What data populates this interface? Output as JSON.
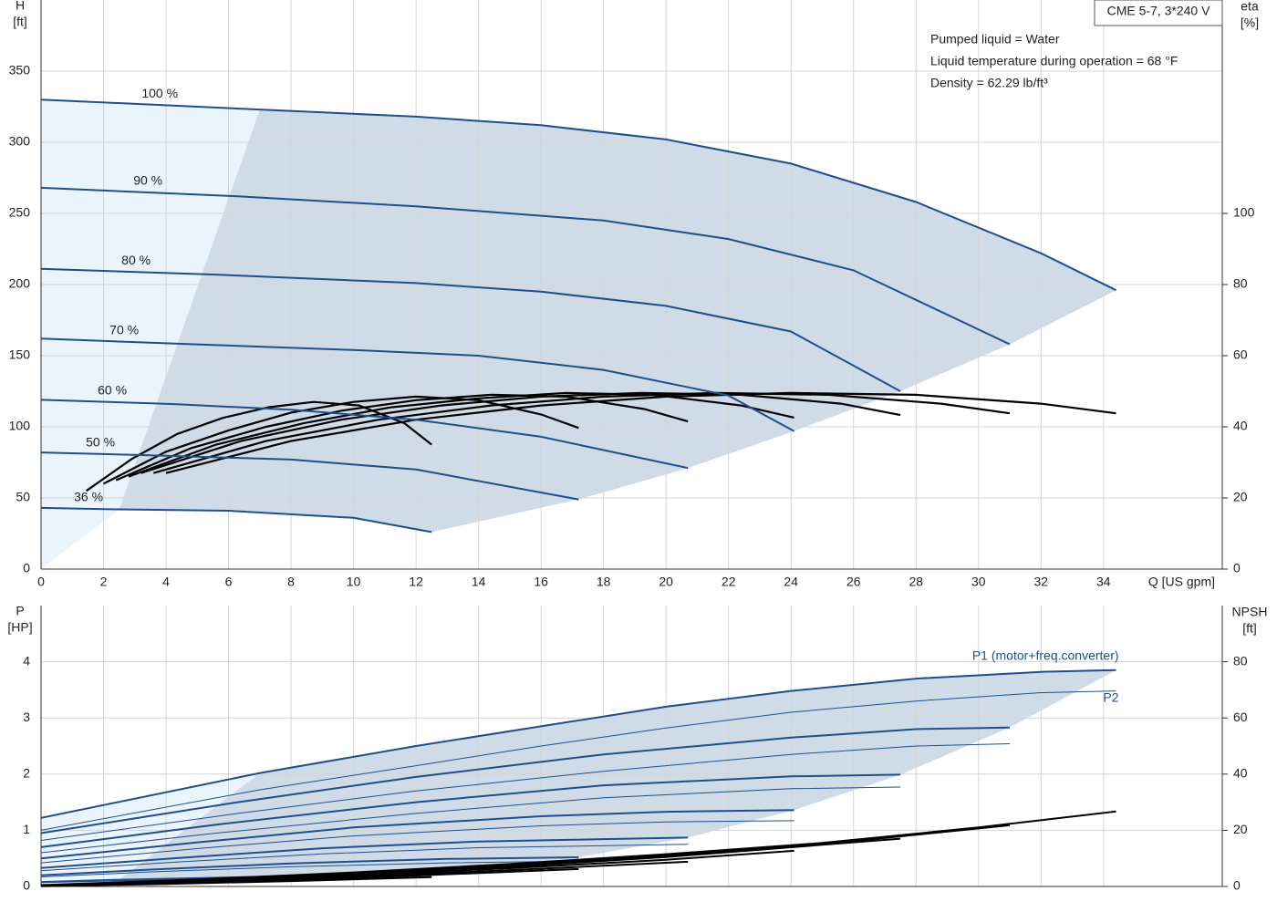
{
  "chart_data": [
    {
      "type": "line",
      "y_label": "H",
      "y_unit": "[ft]",
      "y2_label": "eta",
      "y2_unit": "[%]",
      "x_label": "Q [US gpm]",
      "box_title": "CME 5-7, 3*240 V",
      "notes": [
        "Pumped liquid = Water",
        "Liquid temperature during operation = 68 °F",
        "Density = 62.29 lb/ft³"
      ],
      "xlim": [
        0,
        37.8
      ],
      "xticks": [
        0,
        2,
        4,
        6,
        8,
        10,
        12,
        14,
        16,
        18,
        20,
        22,
        24,
        26,
        28,
        30,
        32,
        34
      ],
      "ylim": [
        0,
        400
      ],
      "yticks": [
        0,
        50,
        100,
        150,
        200,
        250,
        300,
        350
      ],
      "y2lim": [
        0,
        160
      ],
      "y2ticks": [
        0,
        20,
        40,
        60,
        80,
        100
      ],
      "grid": true,
      "shade_color": "#cfdce8",
      "light_shade_color": "#eaf4fc",
      "series": [
        {
          "name": "100 %",
          "color": "#1f4e8c",
          "x": [
            0,
            7,
            12,
            16,
            20,
            24,
            28,
            32,
            34.4
          ],
          "values": [
            330,
            323,
            318,
            312,
            302,
            285,
            258,
            222,
            196
          ]
        },
        {
          "name": "90 %",
          "color": "#1f4e8c",
          "x": [
            0,
            6.3,
            12,
            18,
            22,
            26,
            31
          ],
          "values": [
            268,
            262,
            255,
            245,
            232,
            210,
            158
          ]
        },
        {
          "name": "80 %",
          "color": "#1f4e8c",
          "x": [
            0,
            5.6,
            12,
            16,
            20,
            24,
            27.5
          ],
          "values": [
            211,
            207,
            201,
            195,
            185,
            167,
            125
          ]
        },
        {
          "name": "70 %",
          "color": "#1f4e8c",
          "x": [
            0,
            4.9,
            10,
            14,
            18,
            22,
            24.1
          ],
          "values": [
            162,
            158,
            154,
            150,
            140,
            122,
            97
          ]
        },
        {
          "name": "60 %",
          "color": "#1f4e8c",
          "x": [
            0,
            4.2,
            8,
            12,
            16,
            20.7
          ],
          "values": [
            119,
            116,
            112,
            105,
            93,
            71
          ]
        },
        {
          "name": "50 %",
          "color": "#1f4e8c",
          "x": [
            0,
            3.5,
            8,
            12,
            17.2
          ],
          "values": [
            82,
            80,
            77,
            70,
            49
          ]
        },
        {
          "name": "36 %",
          "color": "#1f4e8c",
          "x": [
            0,
            2.5,
            6,
            10,
            12.5
          ],
          "values": [
            43,
            42,
            41,
            36,
            26
          ]
        }
      ],
      "eta_series": [
        {
          "axis": "y2",
          "color": "#000000",
          "x": [
            4,
            8,
            12,
            16,
            20,
            24,
            28,
            32,
            34.4
          ],
          "values": [
            27,
            36,
            42,
            46,
            48.5,
            49.5,
            49,
            46.5,
            43.8
          ]
        },
        {
          "axis": "y2",
          "color": "#000000",
          "x": [
            3.6,
            7.2,
            10.8,
            14.4,
            18,
            21.6,
            25.2,
            28.8,
            31
          ],
          "values": [
            27,
            36,
            42,
            46,
            48.5,
            49.5,
            49,
            46.5,
            43.8
          ]
        },
        {
          "axis": "y2",
          "color": "#000000",
          "x": [
            3.2,
            6.4,
            9.6,
            12.8,
            16,
            19.2,
            22.4,
            25.6,
            27.5
          ],
          "values": [
            27,
            36,
            42,
            46,
            48.5,
            49.5,
            49,
            46.5,
            43.3
          ]
        },
        {
          "axis": "y2",
          "color": "#000000",
          "x": [
            2.8,
            5.6,
            8.4,
            11.2,
            14,
            16.8,
            19.6,
            22.4,
            24.1
          ],
          "values": [
            26,
            35,
            41,
            45.5,
            48,
            49.5,
            49,
            46,
            42.6
          ]
        },
        {
          "axis": "y2",
          "color": "#000000",
          "x": [
            2.4,
            4.8,
            7.2,
            9.6,
            12,
            14.4,
            16.8,
            19.3,
            20.7
          ],
          "values": [
            25,
            34,
            40,
            44.5,
            47.5,
            49,
            48.5,
            45,
            41.5
          ]
        },
        {
          "axis": "y2",
          "color": "#000000",
          "x": [
            2,
            4,
            6,
            8,
            10,
            12,
            14,
            16,
            17.2
          ],
          "values": [
            24,
            33,
            39,
            44,
            47,
            48.5,
            47.5,
            43.5,
            39.7
          ]
        },
        {
          "axis": "y2",
          "color": "#000000",
          "x": [
            1.45,
            2.91,
            4.36,
            5.81,
            7.27,
            8.72,
            10.18,
            11.63,
            12.5
          ],
          "values": [
            22,
            31,
            38,
            42.5,
            45.5,
            47,
            46,
            41,
            35
          ]
        }
      ]
    },
    {
      "type": "line",
      "y_label": "P",
      "y_unit": "[HP]",
      "y2_label": "NPSH",
      "y2_unit": "[ft]",
      "xlim": [
        0,
        37.8
      ],
      "xticks": [
        0,
        2,
        4,
        6,
        8,
        10,
        12,
        14,
        16,
        18,
        20,
        22,
        24,
        26,
        28,
        30,
        32,
        34
      ],
      "ylim": [
        0,
        5
      ],
      "yticks": [
        0,
        1,
        2,
        3,
        4
      ],
      "y2lim": [
        0,
        100
      ],
      "y2ticks": [
        0,
        20,
        40,
        60,
        80
      ],
      "grid": true,
      "shade_color": "#cfdce8",
      "light_shade_color": "#eaf4fc",
      "p1_series": [
        {
          "name": "P1 (motor+freq.converter)",
          "color": "#1f4e8c",
          "x": [
            0,
            7,
            12,
            16,
            20,
            24,
            28,
            32,
            34.4
          ],
          "values": [
            1.22,
            2.02,
            2.5,
            2.85,
            3.2,
            3.48,
            3.7,
            3.82,
            3.85
          ]
        },
        {
          "color": "#1f4e8c",
          "x": [
            0,
            6.3,
            12,
            18,
            24,
            28,
            31
          ],
          "values": [
            0.95,
            1.5,
            1.95,
            2.35,
            2.65,
            2.8,
            2.83
          ]
        },
        {
          "color": "#1f4e8c",
          "x": [
            0,
            5.6,
            12,
            18,
            24,
            27.5
          ],
          "values": [
            0.7,
            1.1,
            1.5,
            1.8,
            1.96,
            1.99
          ]
        },
        {
          "color": "#1f4e8c",
          "x": [
            0,
            4.9,
            10,
            16,
            20,
            24.1
          ],
          "values": [
            0.5,
            0.78,
            1.05,
            1.25,
            1.33,
            1.36
          ]
        },
        {
          "color": "#1f4e8c",
          "x": [
            0,
            4.2,
            9,
            14,
            20.7
          ],
          "values": [
            0.33,
            0.5,
            0.68,
            0.8,
            0.87
          ]
        },
        {
          "color": "#1f4e8c",
          "x": [
            0,
            3.5,
            8,
            13,
            17.2
          ],
          "values": [
            0.2,
            0.3,
            0.41,
            0.49,
            0.52
          ]
        },
        {
          "color": "#1f4e8c",
          "x": [
            0,
            2.5,
            6,
            9,
            12.5
          ],
          "values": [
            0.08,
            0.12,
            0.16,
            0.19,
            0.2
          ]
        }
      ],
      "p2_series": [
        {
          "name": "P2",
          "color": "#1f4e8c",
          "x": [
            0,
            7,
            12,
            16,
            20,
            24,
            28,
            32,
            34.4
          ],
          "values": [
            1.0,
            1.72,
            2.15,
            2.5,
            2.82,
            3.1,
            3.3,
            3.45,
            3.48
          ]
        },
        {
          "color": "#1f4e8c",
          "x": [
            0,
            6.3,
            12,
            18,
            24,
            28,
            31
          ],
          "values": [
            0.82,
            1.3,
            1.7,
            2.05,
            2.35,
            2.5,
            2.54
          ]
        },
        {
          "color": "#1f4e8c",
          "x": [
            0,
            5.6,
            12,
            18,
            24,
            27.5
          ],
          "values": [
            0.6,
            0.95,
            1.3,
            1.58,
            1.74,
            1.77
          ]
        },
        {
          "color": "#1f4e8c",
          "x": [
            0,
            4.9,
            10,
            16,
            20,
            24.1
          ],
          "values": [
            0.42,
            0.67,
            0.9,
            1.08,
            1.15,
            1.17
          ]
        },
        {
          "color": "#1f4e8c",
          "x": [
            0,
            4.2,
            9,
            14,
            20.7
          ],
          "values": [
            0.28,
            0.43,
            0.58,
            0.69,
            0.75
          ]
        },
        {
          "color": "#1f4e8c",
          "x": [
            0,
            3.5,
            8,
            13,
            17.2
          ],
          "values": [
            0.17,
            0.26,
            0.35,
            0.42,
            0.45
          ]
        },
        {
          "color": "#1f4e8c",
          "x": [
            0,
            2.5,
            6,
            9,
            12.5
          ],
          "values": [
            0.07,
            0.1,
            0.14,
            0.16,
            0.17
          ]
        }
      ],
      "npsh_series": [
        {
          "axis": "y2",
          "color": "#000000",
          "x": [
            0,
            5,
            10,
            15,
            20,
            25,
            30,
            34.4
          ],
          "values": [
            0.5,
            2.5,
            5,
            8,
            11.5,
            15.5,
            21,
            26.7
          ]
        },
        {
          "axis": "y2",
          "color": "#000000",
          "x": [
            0,
            5,
            10,
            15,
            20,
            25,
            31
          ],
          "values": [
            0.4,
            2.2,
            4.5,
            7.5,
            11,
            15,
            21.8
          ]
        },
        {
          "axis": "y2",
          "color": "#000000",
          "x": [
            0,
            5,
            10,
            15,
            20,
            27.5
          ],
          "values": [
            0.3,
            2,
            4.3,
            7,
            10.5,
            17
          ]
        },
        {
          "axis": "y2",
          "color": "#000000",
          "x": [
            0,
            5,
            10,
            15,
            20,
            24.1
          ],
          "values": [
            0.3,
            1.8,
            4,
            6.5,
            9.5,
            12.7
          ]
        },
        {
          "axis": "y2",
          "color": "#000000",
          "x": [
            0,
            5,
            10,
            15,
            20.7
          ],
          "values": [
            0.2,
            1.6,
            3.5,
            5.8,
            8.8
          ]
        },
        {
          "axis": "y2",
          "color": "#000000",
          "x": [
            0,
            5,
            10,
            17.2
          ],
          "values": [
            0.2,
            1.4,
            3,
            6.2
          ]
        },
        {
          "axis": "y2",
          "color": "#000000",
          "x": [
            0,
            4,
            8,
            12.5
          ],
          "values": [
            0.1,
            0.9,
            1.9,
            3.3
          ]
        }
      ]
    }
  ]
}
